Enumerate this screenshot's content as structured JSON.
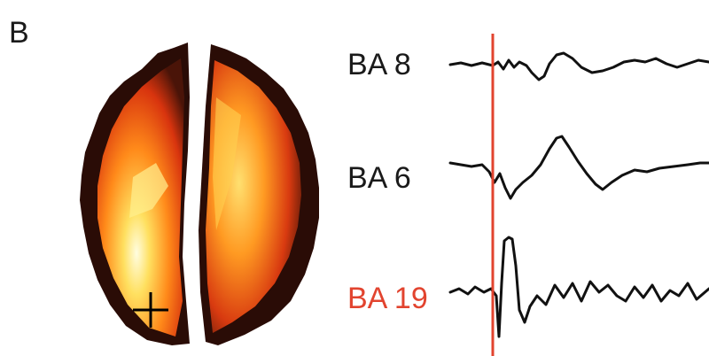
{
  "panel_label": "B",
  "traces": [
    {
      "label": "BA 8"
    },
    {
      "label": "BA 6"
    },
    {
      "label": "BA 19"
    }
  ]
}
